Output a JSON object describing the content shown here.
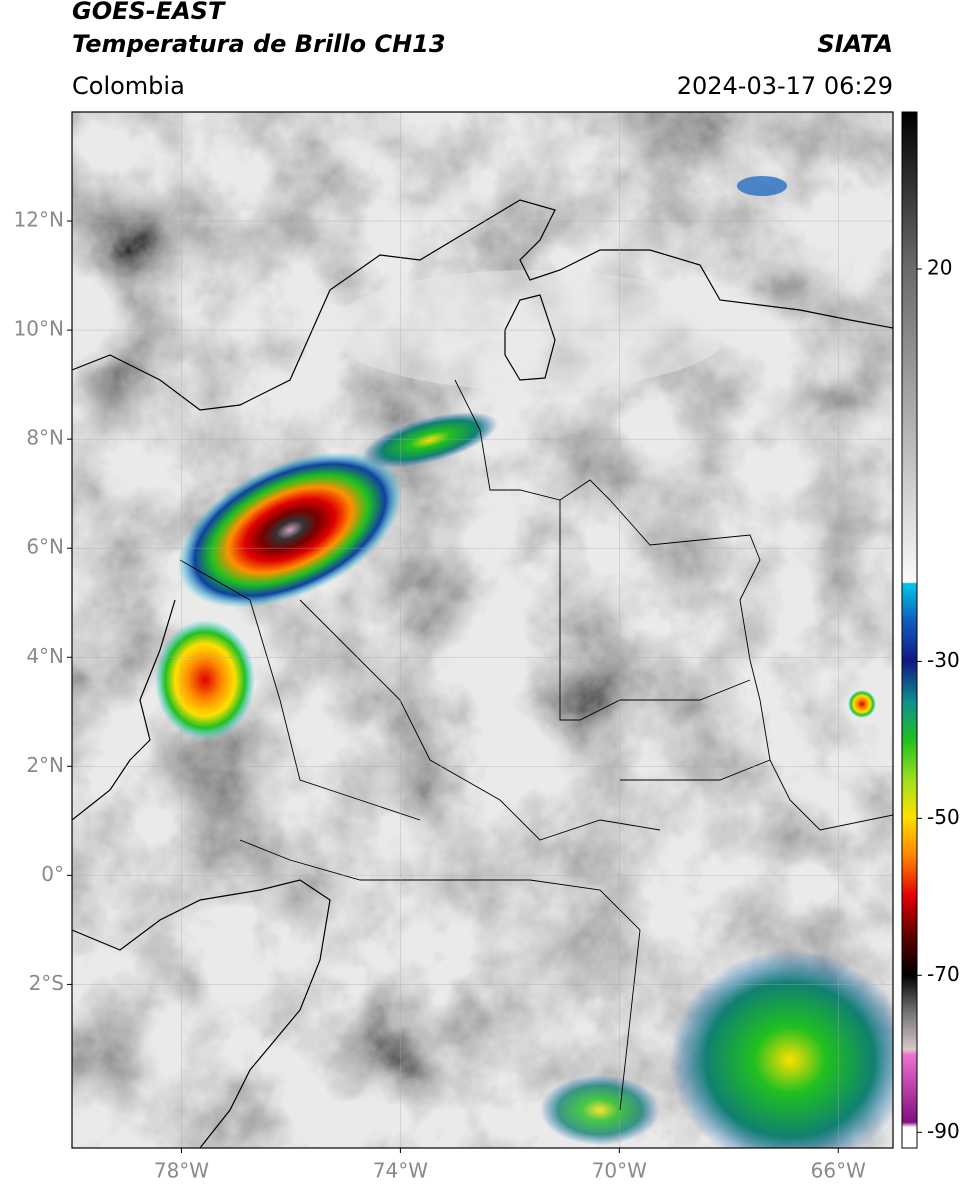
{
  "header": {
    "title": "GOES-EAST",
    "subtitle": "Temperatura de Brillo CH13",
    "region": "Colombia",
    "source": "SIATA",
    "timestamp": "2024-03-17 06:29"
  },
  "map": {
    "lon_range": [
      -80,
      -65
    ],
    "lat_range": [
      -5,
      14
    ],
    "lat_ticks": [
      {
        "value": 12,
        "label": "12°N"
      },
      {
        "value": 10,
        "label": "10°N"
      },
      {
        "value": 8,
        "label": "8°N"
      },
      {
        "value": 6,
        "label": "6°N"
      },
      {
        "value": 4,
        "label": "4°N"
      },
      {
        "value": 2,
        "label": "2°N"
      },
      {
        "value": 0,
        "label": "0°"
      },
      {
        "value": -2,
        "label": "2°S"
      }
    ],
    "lon_ticks": [
      {
        "value": -78,
        "label": "78°W"
      },
      {
        "value": -74,
        "label": "74°W"
      },
      {
        "value": -70,
        "label": "70°W"
      },
      {
        "value": -66,
        "label": "66°W"
      }
    ]
  },
  "colorbar": {
    "range": [
      -92,
      40
    ],
    "ticks": [
      20,
      -30,
      -50,
      -70,
      -90
    ]
  }
}
